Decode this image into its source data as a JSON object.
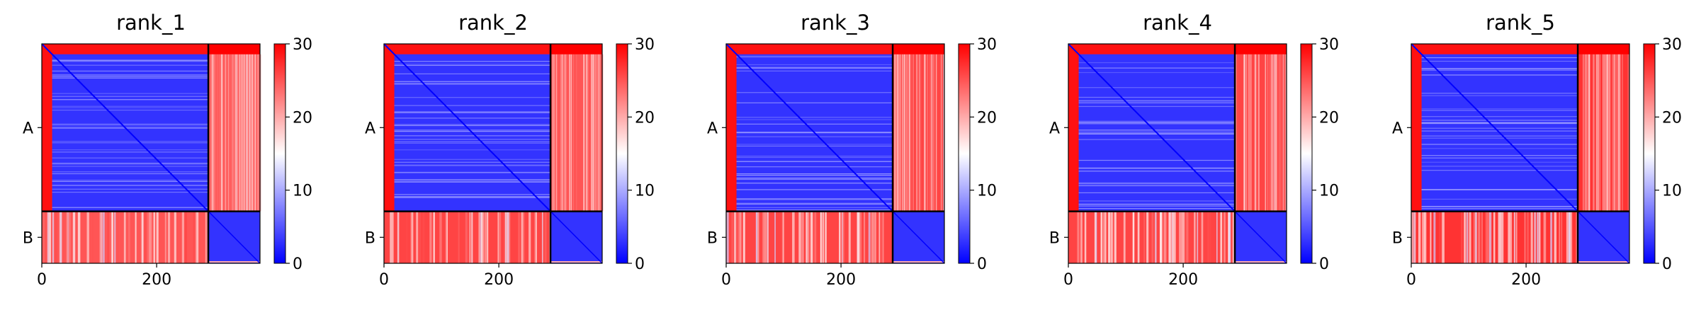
{
  "figure": {
    "colorbar_ticks": [
      "0",
      "10",
      "20",
      "30"
    ],
    "x_ticks": [
      "0",
      "200"
    ],
    "y_ticks": [
      "A",
      "B"
    ],
    "colormap": [
      "#0000ff",
      "#ffffff",
      "#ff0000"
    ]
  },
  "chart_data": [
    {
      "type": "heatmap",
      "title": "rank_1",
      "x_ticks": [
        0,
        200
      ],
      "y_labels": [
        "A",
        "B"
      ],
      "chains": [
        {
          "name": "A",
          "length": 290
        },
        {
          "name": "B",
          "length": 90
        }
      ],
      "vmin": 0,
      "vmax": 30,
      "colorbar_ticks": [
        0,
        10,
        20,
        30
      ],
      "block_mean_values": {
        "A_A": 3,
        "A_B": 24,
        "B_A": 25,
        "B_B": 3
      },
      "grid": false
    },
    {
      "type": "heatmap",
      "title": "rank_2",
      "x_ticks": [
        0,
        200
      ],
      "y_labels": [
        "A",
        "B"
      ],
      "chains": [
        {
          "name": "A",
          "length": 290
        },
        {
          "name": "B",
          "length": 90
        }
      ],
      "vmin": 0,
      "vmax": 30,
      "colorbar_ticks": [
        0,
        10,
        20,
        30
      ],
      "block_mean_values": {
        "A_A": 3,
        "A_B": 25,
        "B_A": 26,
        "B_B": 3
      },
      "grid": false
    },
    {
      "type": "heatmap",
      "title": "rank_3",
      "x_ticks": [
        0,
        200
      ],
      "y_labels": [
        "A",
        "B"
      ],
      "chains": [
        {
          "name": "A",
          "length": 290
        },
        {
          "name": "B",
          "length": 90
        }
      ],
      "vmin": 0,
      "vmax": 30,
      "colorbar_ticks": [
        0,
        10,
        20,
        30
      ],
      "block_mean_values": {
        "A_A": 3,
        "A_B": 26,
        "B_A": 26,
        "B_B": 3
      },
      "grid": false
    },
    {
      "type": "heatmap",
      "title": "rank_4",
      "x_ticks": [
        0,
        200
      ],
      "y_labels": [
        "A",
        "B"
      ],
      "chains": [
        {
          "name": "A",
          "length": 290
        },
        {
          "name": "B",
          "length": 90
        }
      ],
      "vmin": 0,
      "vmax": 30,
      "colorbar_ticks": [
        0,
        10,
        20,
        30
      ],
      "block_mean_values": {
        "A_A": 3,
        "A_B": 26,
        "B_A": 26,
        "B_B": 3
      },
      "grid": false
    },
    {
      "type": "heatmap",
      "title": "rank_5",
      "x_ticks": [
        0,
        200
      ],
      "y_labels": [
        "A",
        "B"
      ],
      "chains": [
        {
          "name": "A",
          "length": 290
        },
        {
          "name": "B",
          "length": 90
        }
      ],
      "vmin": 0,
      "vmax": 30,
      "colorbar_ticks": [
        0,
        10,
        20,
        30
      ],
      "block_mean_values": {
        "A_A": 3,
        "A_B": 27,
        "B_A": 27,
        "B_B": 3
      },
      "grid": false
    }
  ]
}
